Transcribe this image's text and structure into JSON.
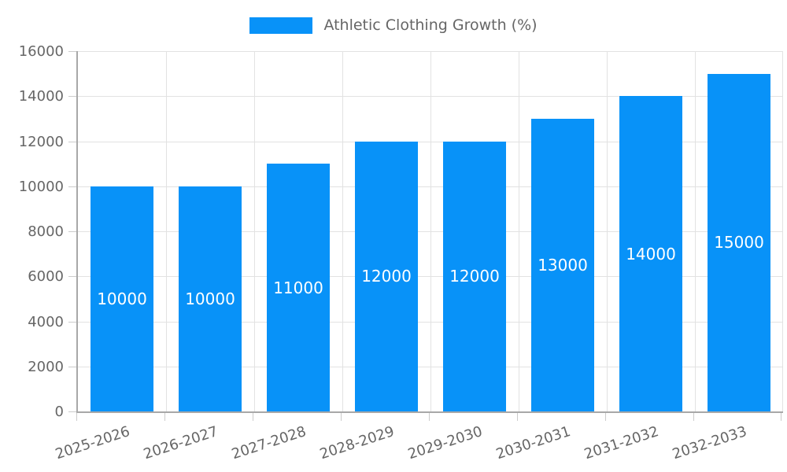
{
  "legend": {
    "label": "Athletic Clothing Growth (%)"
  },
  "colors": {
    "bar": "#0892f8",
    "grid": "#e2e2e2",
    "axis": "#a8a8a8",
    "tick_text": "#666666",
    "bar_label_text": "#ffffff"
  },
  "chart_data": {
    "type": "bar",
    "title": "",
    "xlabel": "",
    "ylabel": "",
    "legend_position": "top",
    "grid": true,
    "categories": [
      "2025-2026",
      "2026-2027",
      "2027-2028",
      "2028-2029",
      "2029-2030",
      "2030-2031",
      "2031-2032",
      "2032-2033"
    ],
    "series": [
      {
        "name": "Athletic Clothing Growth (%)",
        "values": [
          10000,
          10000,
          11000,
          12000,
          12000,
          13000,
          14000,
          15000
        ],
        "color": "#0892f8"
      }
    ],
    "bar_value_labels": [
      "10000",
      "10000",
      "11000",
      "12000",
      "12000",
      "13000",
      "14000",
      "15000"
    ],
    "ylim": [
      0,
      16000
    ],
    "ytick_step": 2000,
    "yticks": [
      0,
      2000,
      4000,
      6000,
      8000,
      10000,
      12000,
      14000,
      16000
    ]
  }
}
